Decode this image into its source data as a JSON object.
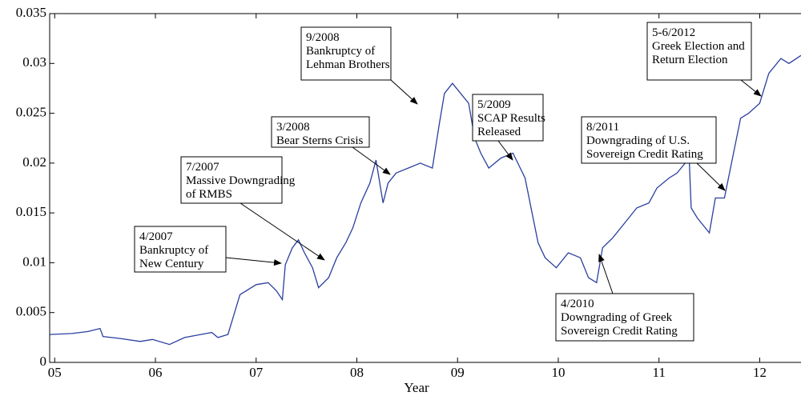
{
  "chart_data": {
    "type": "line",
    "x_label": "Year",
    "color": "#2a3f9f",
    "xlim": [
      2004.95,
      2012.41
    ],
    "ylim": [
      0,
      0.035
    ],
    "xticks": [
      {
        "value": 2005,
        "label": "05"
      },
      {
        "value": 2006,
        "label": "06"
      },
      {
        "value": 2007,
        "label": "07"
      },
      {
        "value": 2008,
        "label": "08"
      },
      {
        "value": 2009,
        "label": "09"
      },
      {
        "value": 2010,
        "label": "10"
      },
      {
        "value": 2011,
        "label": "11"
      },
      {
        "value": 2012,
        "label": "12"
      }
    ],
    "yticks": [
      0,
      0.005,
      0.01,
      0.015,
      0.02,
      0.025,
      0.03,
      0.035
    ],
    "x": [
      2004.95,
      2005.17,
      2005.33,
      2005.45,
      2005.48,
      2005.65,
      2005.85,
      2005.97,
      2006.14,
      2006.29,
      2006.45,
      2006.56,
      2006.62,
      2006.72,
      2006.84,
      2007.0,
      2007.12,
      2007.2,
      2007.26,
      2007.29,
      2007.36,
      2007.42,
      2007.48,
      2007.56,
      2007.62,
      2007.72,
      2007.8,
      2007.89,
      2007.96,
      2008.04,
      2008.13,
      2008.19,
      2008.26,
      2008.31,
      2008.39,
      2008.51,
      2008.63,
      2008.75,
      2008.82,
      2008.87,
      2008.95,
      2009.03,
      2009.11,
      2009.17,
      2009.23,
      2009.31,
      2009.43,
      2009.55,
      2009.67,
      2009.75,
      2009.8,
      2009.87,
      2009.98,
      2010.1,
      2010.22,
      2010.3,
      2010.38,
      2010.44,
      2010.54,
      2010.66,
      2010.78,
      2010.9,
      2010.98,
      2011.1,
      2011.18,
      2011.3,
      2011.32,
      2011.38,
      2011.5,
      2011.56,
      2011.65,
      2011.73,
      2011.81,
      2011.89,
      2012.0,
      2012.09,
      2012.21,
      2012.29,
      2012.41
    ],
    "values": [
      0.0028,
      0.0029,
      0.0031,
      0.0034,
      0.0026,
      0.0024,
      0.0021,
      0.0023,
      0.0018,
      0.0025,
      0.0028,
      0.003,
      0.0025,
      0.0028,
      0.0068,
      0.0078,
      0.008,
      0.0072,
      0.0063,
      0.0098,
      0.0115,
      0.0123,
      0.011,
      0.0095,
      0.0075,
      0.0085,
      0.0105,
      0.012,
      0.0135,
      0.016,
      0.018,
      0.0203,
      0.016,
      0.018,
      0.019,
      0.0195,
      0.02,
      0.0195,
      0.024,
      0.027,
      0.028,
      0.027,
      0.026,
      0.0225,
      0.021,
      0.0195,
      0.0205,
      0.021,
      0.0185,
      0.0145,
      0.012,
      0.0105,
      0.0095,
      0.011,
      0.0105,
      0.0085,
      0.008,
      0.0115,
      0.0125,
      0.014,
      0.0155,
      0.016,
      0.0175,
      0.0185,
      0.019,
      0.0205,
      0.0155,
      0.0145,
      0.013,
      0.0165,
      0.0165,
      0.0205,
      0.0245,
      0.025,
      0.026,
      0.029,
      0.0305,
      0.03,
      0.0308
    ],
    "annotations": [
      {
        "lines": [
          "4/2007",
          "Bankruptcy of",
          "New Century"
        ]
      },
      {
        "lines": [
          "7/2007",
          "Massive Downgrading",
          "of RMBS"
        ]
      },
      {
        "lines": [
          "3/2008",
          "Bear Sterns Crisis"
        ]
      },
      {
        "lines": [
          "9/2008",
          "Bankruptcy of",
          "Lehman Brothers"
        ]
      },
      {
        "lines": [
          "5/2009",
          "SCAP Results",
          "Released"
        ]
      },
      {
        "lines": [
          "8/2011",
          "Downgrading of U.S.",
          "Sovereign Credit Rating"
        ]
      },
      {
        "lines": [
          "5-6/2012",
          "Greek Election and",
          "Return Election"
        ]
      },
      {
        "lines": [
          "4/2010",
          "Downgrading of Greek",
          "Sovereign Credit Rating"
        ]
      }
    ]
  }
}
